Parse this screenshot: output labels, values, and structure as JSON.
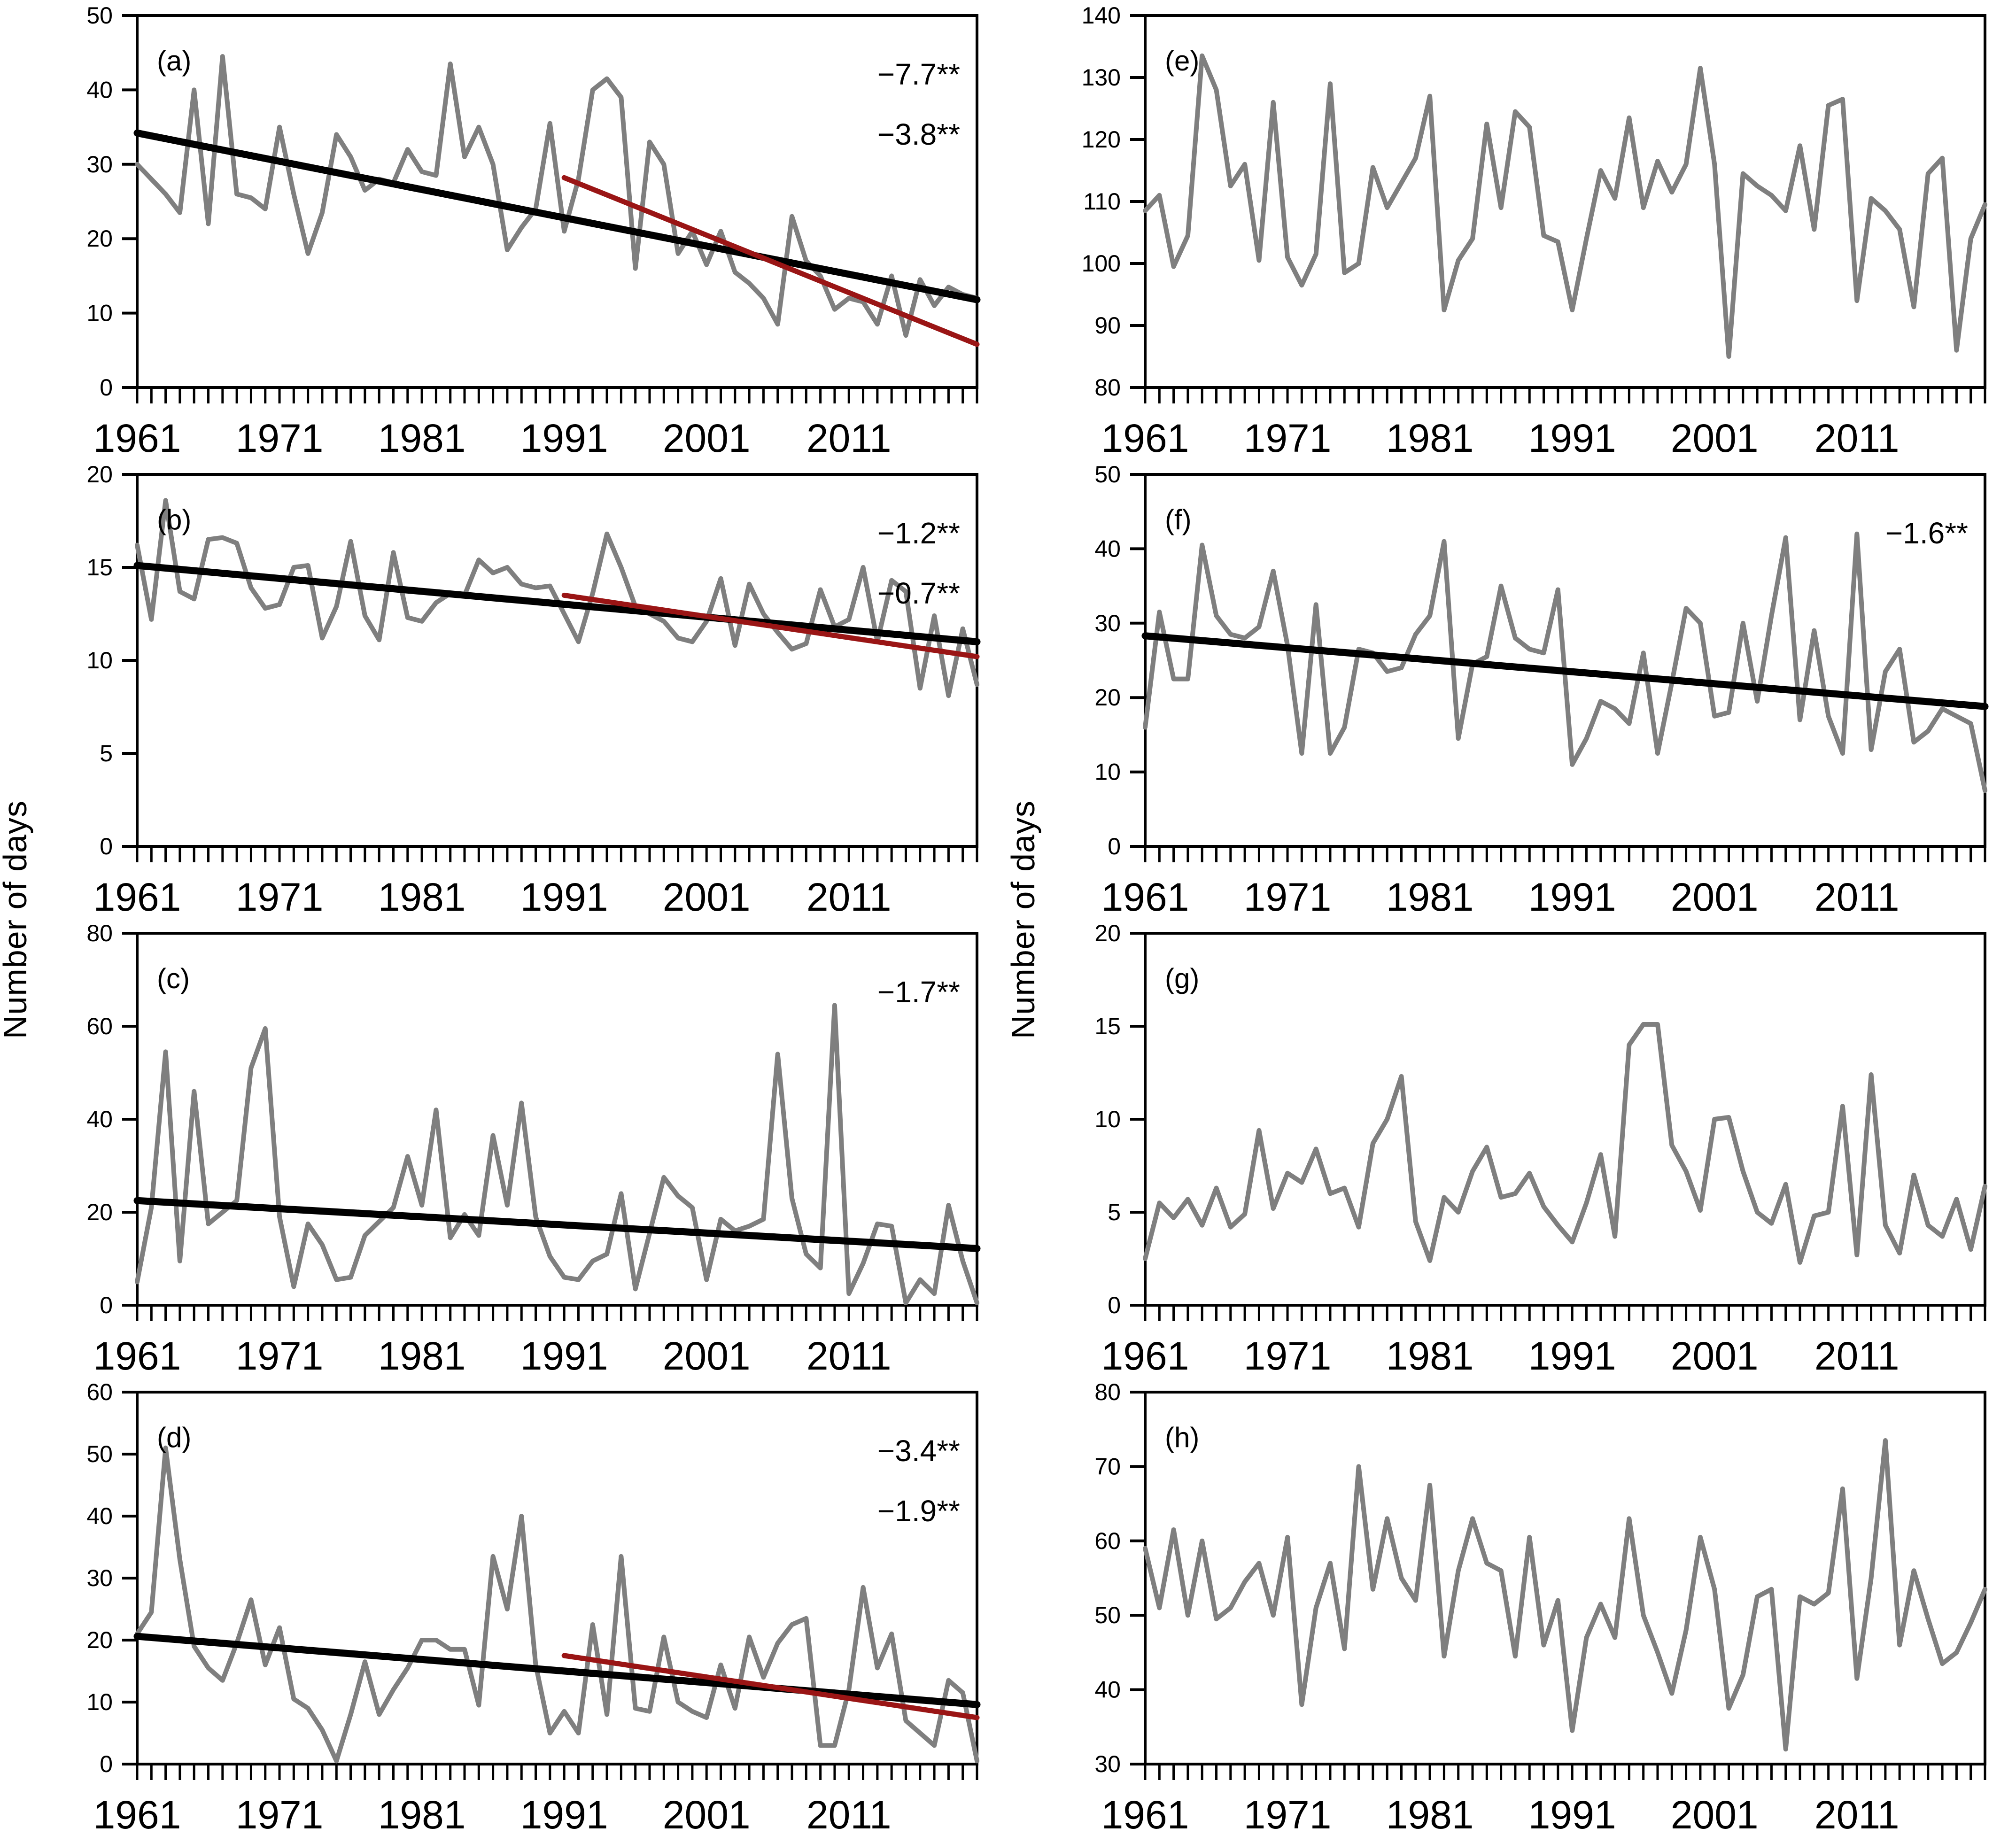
{
  "figure": {
    "ylabel_left": "Number of days",
    "ylabel_right": "Number of days",
    "x_start": 1961,
    "x_end": 2020,
    "xtick_labels": [
      1961,
      1971,
      1981,
      1991,
      2001,
      2011
    ],
    "series_color": "#7f7f7f",
    "trend_black_color": "#000000",
    "trend_red_color": "#9a1515",
    "annotation_red_color": "#a31c1c"
  },
  "chart_data": [
    {
      "id": "a",
      "panel_label": "(a)",
      "type": "line",
      "title": "",
      "xlabel": "",
      "ylabel": "Number of days",
      "ylim": [
        0,
        50
      ],
      "yticks": [
        0,
        10,
        20,
        30,
        40,
        50
      ],
      "x": [
        1961,
        2020
      ],
      "values": [
        30,
        28,
        26,
        23.5,
        40,
        22,
        44.5,
        26,
        25.5,
        24,
        35,
        26,
        18,
        23.5,
        34,
        31,
        26.5,
        28,
        27.5,
        32,
        29,
        28.5,
        43.5,
        31,
        35,
        30,
        18.5,
        21.5,
        24,
        35.5,
        21,
        28,
        40,
        41.5,
        39,
        16,
        33,
        30,
        18,
        21,
        16.5,
        21,
        15.5,
        14,
        12,
        8.5,
        23,
        17,
        15,
        10.5,
        12,
        11.5,
        8.5,
        15,
        7,
        14.5,
        11,
        13.5,
        12.5,
        12
      ],
      "trends": [
        {
          "name": "trend-1961-2020",
          "color": "#000000",
          "x1": 1961,
          "y1": 34.2,
          "x2": 2020,
          "y2": 11.8
        },
        {
          "name": "trend-1991-2020",
          "color": "#9a1515",
          "x1": 1991,
          "y1": 28.2,
          "x2": 2020,
          "y2": 5.8
        }
      ],
      "annotations": [
        {
          "text": "−7.7**",
          "color": "#a31c1c"
        },
        {
          "text": "−3.8**",
          "color": "#000000"
        }
      ]
    },
    {
      "id": "b",
      "panel_label": "(b)",
      "type": "line",
      "title": "",
      "xlabel": "",
      "ylabel": "Number of days",
      "ylim": [
        0,
        20
      ],
      "yticks": [
        0,
        5,
        10,
        15,
        20
      ],
      "x": [
        1961,
        2020
      ],
      "values": [
        16.2,
        12.2,
        18.6,
        13.7,
        13.3,
        16.5,
        16.6,
        16.3,
        13.9,
        12.8,
        13,
        15,
        15.1,
        11.2,
        12.9,
        16.4,
        12.4,
        11.1,
        15.8,
        12.3,
        12.1,
        13.1,
        13.6,
        13.5,
        15.4,
        14.7,
        15,
        14.1,
        13.9,
        14,
        12.5,
        11,
        13.6,
        16.8,
        15,
        12.9,
        12.5,
        12.1,
        11.2,
        11,
        12.1,
        14.4,
        10.8,
        14.1,
        12.5,
        11.5,
        10.6,
        10.9,
        13.8,
        11.8,
        12.2,
        15,
        11,
        14.3,
        13.7,
        8.5,
        12.4,
        8.1,
        11.7,
        8.7
      ],
      "trends": [
        {
          "name": "trend-1961-2020",
          "color": "#000000",
          "x1": 1961,
          "y1": 15.1,
          "x2": 2020,
          "y2": 11.0
        },
        {
          "name": "trend-1991-2020",
          "color": "#9a1515",
          "x1": 1991,
          "y1": 13.5,
          "x2": 2020,
          "y2": 10.2
        }
      ],
      "annotations": [
        {
          "text": "−1.2**",
          "color": "#a31c1c"
        },
        {
          "text": "−0.7**",
          "color": "#000000"
        }
      ]
    },
    {
      "id": "c",
      "panel_label": "(c)",
      "type": "line",
      "title": "",
      "xlabel": "",
      "ylabel": "Number of days",
      "ylim": [
        0,
        80
      ],
      "yticks": [
        0,
        20,
        40,
        60,
        80
      ],
      "x": [
        1961,
        2020
      ],
      "values": [
        5,
        21,
        54.5,
        9.5,
        46,
        17.5,
        20,
        22.5,
        51,
        59.5,
        19,
        4,
        17.5,
        13,
        5.5,
        6,
        15,
        18,
        21,
        32,
        21.5,
        42,
        14.5,
        19.5,
        15,
        36.5,
        21.5,
        43.5,
        19,
        10.5,
        6,
        5.5,
        9.5,
        11,
        24,
        3.5,
        15.5,
        27.5,
        23.5,
        21,
        5.5,
        18.5,
        16,
        17,
        18.5,
        54,
        23,
        11,
        8,
        64.5,
        2.5,
        9,
        17.5,
        17,
        0.5,
        5.5,
        2.5,
        21.5,
        9.5,
        0.5
      ],
      "trends": [
        {
          "name": "trend-1961-2020",
          "color": "#000000",
          "x1": 1961,
          "y1": 22.5,
          "x2": 2020,
          "y2": 12.2
        }
      ],
      "annotations": [
        {
          "text": "−1.7**",
          "color": "#000000"
        }
      ]
    },
    {
      "id": "d",
      "panel_label": "(d)",
      "type": "line",
      "title": "",
      "xlabel": "",
      "ylabel": "Number of days",
      "ylim": [
        0,
        60
      ],
      "yticks": [
        0,
        10,
        20,
        30,
        40,
        50,
        60
      ],
      "x": [
        1961,
        2020
      ],
      "values": [
        21,
        24.5,
        51,
        33,
        19,
        15.5,
        13.5,
        19.5,
        26.5,
        16,
        22,
        10.5,
        9,
        5.5,
        0.5,
        8,
        16.5,
        8,
        12,
        15.5,
        20,
        20,
        18.5,
        18.5,
        9.5,
        33.5,
        25,
        40,
        16,
        5,
        8.5,
        5,
        22.5,
        8,
        33.5,
        9,
        8.5,
        20.5,
        10,
        8.5,
        7.5,
        16,
        9,
        20.5,
        14,
        19.5,
        22.5,
        23.5,
        3,
        3,
        12,
        28.5,
        15.5,
        21,
        7,
        5,
        3,
        13.5,
        11.5,
        0.5
      ],
      "trends": [
        {
          "name": "trend-1961-2020",
          "color": "#000000",
          "x1": 1961,
          "y1": 20.6,
          "x2": 2020,
          "y2": 9.6
        },
        {
          "name": "trend-1991-2020",
          "color": "#9a1515",
          "x1": 1991,
          "y1": 17.5,
          "x2": 2020,
          "y2": 7.5
        }
      ],
      "annotations": [
        {
          "text": "−3.4**",
          "color": "#a31c1c"
        },
        {
          "text": "−1.9**",
          "color": "#000000"
        }
      ]
    },
    {
      "id": "e",
      "panel_label": "(e)",
      "type": "line",
      "title": "",
      "xlabel": "",
      "ylabel": "Number of days",
      "ylim": [
        80,
        140
      ],
      "yticks": [
        80,
        90,
        100,
        110,
        120,
        130,
        140
      ],
      "x": [
        1961,
        2020
      ],
      "values": [
        108.5,
        111,
        99.5,
        104.5,
        133.5,
        128,
        112.5,
        116,
        100.5,
        126,
        101,
        96.5,
        101.5,
        129,
        98.5,
        100,
        115.5,
        109,
        113,
        117,
        127,
        92.5,
        100.5,
        104,
        122.5,
        109,
        124.5,
        122,
        104.5,
        103.5,
        92.5,
        104,
        115,
        110.5,
        123.5,
        109,
        116.5,
        111.5,
        116,
        131.5,
        116,
        85,
        114.5,
        112.5,
        111,
        108.5,
        119,
        105.5,
        125.5,
        126.5,
        94,
        110.5,
        108.5,
        105.5,
        93,
        114.5,
        117,
        86,
        104,
        109.5
      ],
      "trends": [],
      "annotations": []
    },
    {
      "id": "f",
      "panel_label": "(f)",
      "type": "line",
      "title": "",
      "xlabel": "",
      "ylabel": "Number of days",
      "ylim": [
        0,
        50
      ],
      "yticks": [
        0,
        10,
        20,
        30,
        40,
        50
      ],
      "x": [
        1961,
        2020
      ],
      "values": [
        16,
        31.5,
        22.5,
        22.5,
        40.5,
        31,
        28.5,
        28,
        29.5,
        37,
        27,
        12.5,
        32.5,
        12.5,
        16,
        26.5,
        26,
        23.5,
        24,
        28.5,
        31,
        41,
        14.5,
        24.5,
        25.5,
        35,
        28,
        26.5,
        26,
        34.5,
        11,
        14.5,
        19.5,
        18.5,
        16.5,
        26,
        12.5,
        22,
        32,
        30,
        17.5,
        18,
        30,
        19.5,
        31,
        41.5,
        17,
        29,
        17.5,
        12.5,
        42,
        13,
        23.5,
        26.5,
        14,
        15.5,
        18.5,
        17.5,
        16.5,
        7.5
      ],
      "trends": [
        {
          "name": "trend-1961-2020",
          "color": "#000000",
          "x1": 1961,
          "y1": 28.3,
          "x2": 2020,
          "y2": 18.8
        }
      ],
      "annotations": [
        {
          "text": "−1.6**",
          "color": "#000000"
        }
      ]
    },
    {
      "id": "g",
      "panel_label": "(g)",
      "type": "line",
      "title": "",
      "xlabel": "",
      "ylabel": "Number of days",
      "ylim": [
        0,
        20
      ],
      "yticks": [
        0,
        5,
        10,
        15,
        20
      ],
      "x": [
        1961,
        2020
      ],
      "values": [
        2.5,
        5.5,
        4.7,
        5.7,
        4.3,
        6.3,
        4.2,
        4.9,
        9.4,
        5.2,
        7.1,
        6.6,
        8.4,
        6,
        6.3,
        4.2,
        8.7,
        10,
        12.3,
        4.5,
        2.4,
        5.8,
        5,
        7.2,
        8.5,
        5.8,
        6,
        7.1,
        5.3,
        4.3,
        3.4,
        5.5,
        8.1,
        3.7,
        14,
        15.1,
        15.1,
        8.6,
        7.2,
        5.1,
        10,
        10.1,
        7.2,
        5,
        4.4,
        6.5,
        2.3,
        4.8,
        5,
        10.7,
        2.7,
        12.4,
        4.3,
        2.8,
        7,
        4.3,
        3.7,
        5.7,
        3,
        6.4
      ],
      "trends": [],
      "annotations": []
    },
    {
      "id": "h",
      "panel_label": "(h)",
      "type": "line",
      "title": "",
      "xlabel": "",
      "ylabel": "Number of days",
      "ylim": [
        30,
        80
      ],
      "yticks": [
        30,
        40,
        50,
        60,
        70,
        80
      ],
      "x": [
        1961,
        2020
      ],
      "values": [
        59,
        51,
        61.5,
        50,
        60,
        49.5,
        51,
        54.5,
        57,
        50,
        60.5,
        38,
        51,
        57,
        45.5,
        70,
        53.5,
        63,
        55,
        52,
        67.5,
        44.5,
        56,
        63,
        57,
        56,
        44.5,
        60.5,
        46,
        52,
        34.5,
        47,
        51.5,
        47,
        63,
        50,
        45,
        39.5,
        48,
        60.5,
        53.5,
        37.5,
        42,
        52.5,
        53.5,
        32,
        52.5,
        51.5,
        53,
        67,
        41.5,
        55,
        73.5,
        46,
        56,
        49.5,
        43.5,
        45,
        49,
        53.5
      ],
      "trends": [],
      "annotations": []
    }
  ]
}
